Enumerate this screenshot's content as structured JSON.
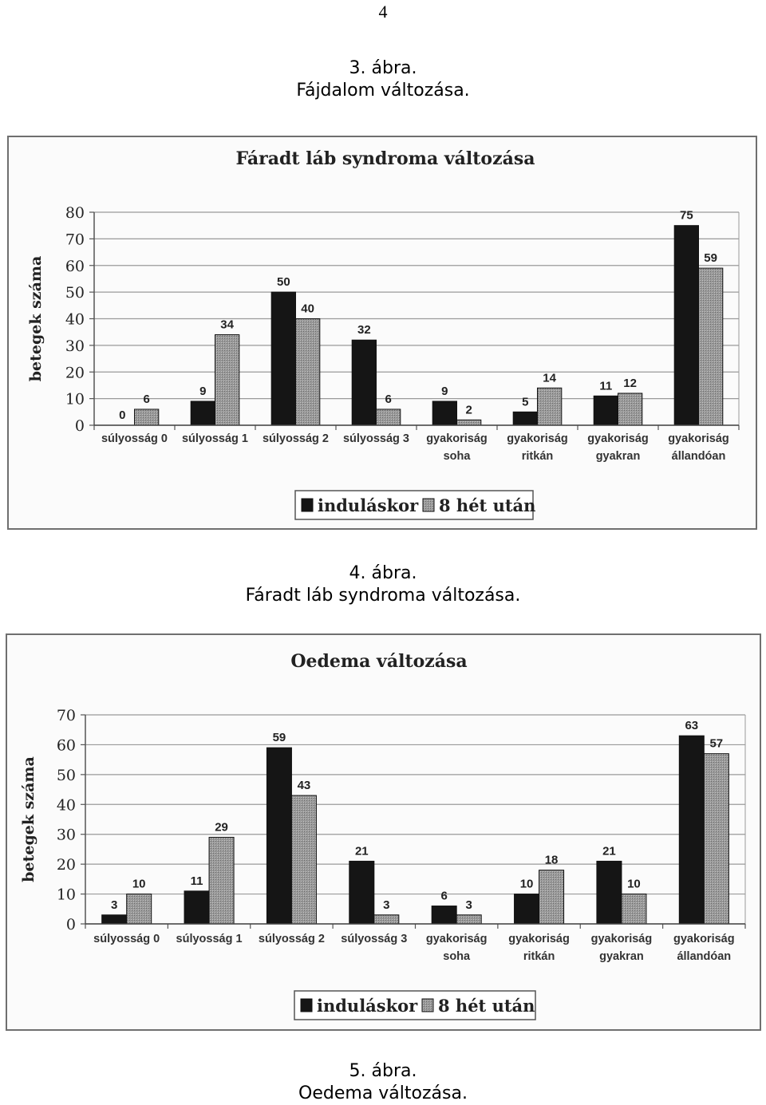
{
  "page": {
    "number": "4",
    "caption3_line1": "3. ábra.",
    "caption3_line2": "Fájdalom változása.",
    "caption4_line1": "4. ábra.",
    "caption4_line2": "Fáradt láb syndroma változása.",
    "caption5_line1": "5. ábra.",
    "caption5_line2": "Oedema változása."
  },
  "colors": {
    "baseline_bar": "#151515",
    "week8_bar": "#9a9a9a",
    "gridline": "#9a9a9a"
  },
  "chart_data": [
    {
      "type": "bar",
      "title": "Fáradt láb syndroma változása",
      "ylabel": "betegek száma",
      "xlabel": "",
      "ylim": [
        0,
        80
      ],
      "yticks": [
        0,
        10,
        20,
        30,
        40,
        50,
        60,
        70,
        80
      ],
      "grid": true,
      "legend_position": "bottom",
      "categories": [
        [
          "súlyosság 0"
        ],
        [
          "súlyosság 1"
        ],
        [
          "súlyosság 2"
        ],
        [
          "súlyosság 3"
        ],
        [
          "gyakoriság",
          "soha"
        ],
        [
          "gyakoriság",
          "ritkán"
        ],
        [
          "gyakoriság",
          "gyakran"
        ],
        [
          "gyakoriság",
          "állandóan"
        ]
      ],
      "series": [
        {
          "name": "induláskor",
          "values": [
            0,
            9,
            50,
            32,
            9,
            5,
            11,
            75
          ]
        },
        {
          "name": "8 hét után",
          "values": [
            6,
            34,
            40,
            6,
            2,
            14,
            12,
            59
          ]
        }
      ]
    },
    {
      "type": "bar",
      "title": "Oedema változása",
      "ylabel": "betegek száma",
      "xlabel": "",
      "ylim": [
        0,
        70
      ],
      "yticks": [
        0,
        10,
        20,
        30,
        40,
        50,
        60,
        70
      ],
      "grid": true,
      "legend_position": "bottom",
      "categories": [
        [
          "súlyosság 0"
        ],
        [
          "súlyosság 1"
        ],
        [
          "súlyosság 2"
        ],
        [
          "súlyosság 3"
        ],
        [
          "gyakoriság",
          "soha"
        ],
        [
          "gyakoriság",
          "ritkán"
        ],
        [
          "gyakoriság",
          "gyakran"
        ],
        [
          "gyakoriság",
          "állandóan"
        ]
      ],
      "series": [
        {
          "name": "induláskor",
          "values": [
            3,
            11,
            59,
            21,
            6,
            10,
            21,
            63
          ]
        },
        {
          "name": "8 hét után",
          "values": [
            10,
            29,
            43,
            3,
            3,
            18,
            10,
            57
          ]
        }
      ]
    }
  ]
}
